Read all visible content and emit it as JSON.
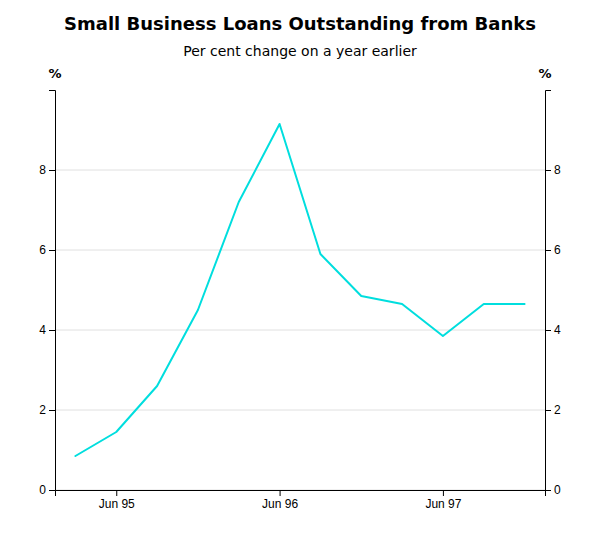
{
  "chart_data": {
    "type": "line",
    "title": "Small Business Loans Outstanding from Banks",
    "subtitle": "Per cent change on a year earlier",
    "y_label": "%",
    "y2_label": "%",
    "x": [
      0,
      1,
      2,
      3,
      4,
      5,
      6,
      7,
      8,
      9,
      10,
      11
    ],
    "xlim": [
      -0.5,
      11.5
    ],
    "xticks": [
      {
        "value": 1,
        "label": "Jun 95"
      },
      {
        "value": 5,
        "label": "Jun 96"
      },
      {
        "value": 9,
        "label": "Jun 97"
      }
    ],
    "ylim": [
      0,
      10
    ],
    "yticks": [
      0,
      2,
      4,
      6,
      8
    ],
    "y2lim": [
      0,
      10
    ],
    "y2ticks": [
      0,
      2,
      4,
      6,
      8
    ],
    "grid": true,
    "series": [
      {
        "color": "#00dede",
        "values": [
          0.85,
          1.45,
          2.6,
          4.5,
          7.2,
          9.15,
          5.9,
          4.85,
          4.65,
          3.85,
          4.65,
          4.65
        ]
      }
    ]
  }
}
